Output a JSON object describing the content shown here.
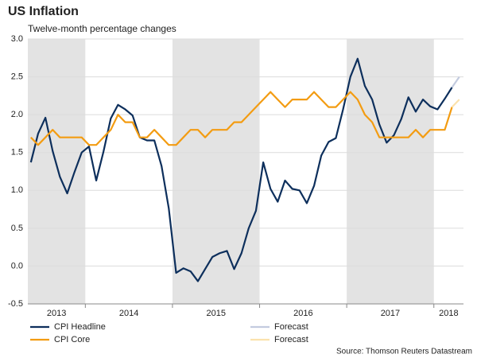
{
  "chart_data": {
    "type": "line",
    "title": "US Inflation",
    "subtitle": "Twelve-month percentage changes",
    "source": "Source: Thomson Reuters Datastream",
    "x": [
      2013.375,
      2013.458,
      2013.542,
      2013.625,
      2013.708,
      2013.792,
      2013.875,
      2013.958,
      2014.042,
      2014.125,
      2014.208,
      2014.292,
      2014.375,
      2014.458,
      2014.542,
      2014.625,
      2014.708,
      2014.792,
      2014.875,
      2014.958,
      2015.042,
      2015.125,
      2015.208,
      2015.292,
      2015.375,
      2015.458,
      2015.542,
      2015.625,
      2015.708,
      2015.792,
      2015.875,
      2015.958,
      2016.042,
      2016.125,
      2016.208,
      2016.292,
      2016.375,
      2016.458,
      2016.542,
      2016.625,
      2016.708,
      2016.792,
      2016.875,
      2016.958,
      2017.042,
      2017.125,
      2017.208,
      2017.292,
      2017.375,
      2017.458,
      2017.542,
      2017.625,
      2017.708,
      2017.792,
      2017.875,
      2017.958,
      2018.042,
      2018.125,
      2018.208,
      2018.292
    ],
    "series": [
      {
        "name": "CPI Headline",
        "color": "#0d2f5c",
        "values": [
          1.37,
          1.75,
          1.96,
          1.52,
          1.18,
          0.96,
          1.24,
          1.5,
          1.58,
          1.13,
          1.51,
          1.95,
          2.13,
          2.07,
          1.99,
          1.7,
          1.66,
          1.66,
          1.32,
          0.76,
          -0.09,
          -0.03,
          -0.07,
          -0.2,
          -0.04,
          0.12,
          0.17,
          0.2,
          -0.04,
          0.17,
          0.5,
          0.73,
          1.37,
          1.02,
          0.85,
          1.13,
          1.02,
          1.0,
          0.83,
          1.06,
          1.46,
          1.64,
          1.69,
          2.07,
          2.5,
          2.74,
          2.38,
          2.2,
          1.87,
          1.63,
          1.73,
          1.94,
          2.23,
          2.04,
          2.2,
          2.11,
          2.07,
          2.21,
          2.36,
          null
        ]
      },
      {
        "name": "CPI Core",
        "color": "#f39c12",
        "values": [
          1.7,
          1.6,
          1.7,
          1.8,
          1.7,
          1.7,
          1.7,
          1.7,
          1.6,
          1.6,
          1.7,
          1.8,
          2.0,
          1.9,
          1.9,
          1.7,
          1.7,
          1.8,
          1.7,
          1.6,
          1.6,
          1.7,
          1.8,
          1.8,
          1.7,
          1.8,
          1.8,
          1.8,
          1.9,
          1.9,
          2.0,
          2.1,
          2.2,
          2.3,
          2.2,
          2.1,
          2.2,
          2.2,
          2.2,
          2.3,
          2.2,
          2.1,
          2.1,
          2.2,
          2.3,
          2.2,
          2.0,
          1.9,
          1.7,
          1.7,
          1.7,
          1.7,
          1.7,
          1.8,
          1.7,
          1.8,
          1.8,
          1.8,
          2.1,
          null
        ]
      },
      {
        "name": "Forecast",
        "color": "#c3cbdf",
        "values": [
          null,
          null,
          null,
          null,
          null,
          null,
          null,
          null,
          null,
          null,
          null,
          null,
          null,
          null,
          null,
          null,
          null,
          null,
          null,
          null,
          null,
          null,
          null,
          null,
          null,
          null,
          null,
          null,
          null,
          null,
          null,
          null,
          null,
          null,
          null,
          null,
          null,
          null,
          null,
          null,
          null,
          null,
          null,
          null,
          null,
          null,
          null,
          null,
          null,
          null,
          null,
          null,
          null,
          null,
          null,
          null,
          null,
          null,
          2.36,
          2.5
        ]
      },
      {
        "name": "Forecast",
        "color": "#fbe2ad",
        "values": [
          null,
          null,
          null,
          null,
          null,
          null,
          null,
          null,
          null,
          null,
          null,
          null,
          null,
          null,
          null,
          null,
          null,
          null,
          null,
          null,
          null,
          null,
          null,
          null,
          null,
          null,
          null,
          null,
          null,
          null,
          null,
          null,
          null,
          null,
          null,
          null,
          null,
          null,
          null,
          null,
          null,
          null,
          null,
          null,
          null,
          null,
          null,
          null,
          null,
          null,
          null,
          null,
          null,
          null,
          null,
          null,
          null,
          null,
          2.1,
          2.2
        ]
      }
    ],
    "xlim": [
      2013.34,
      2018.34
    ],
    "xticks": [
      2013,
      2014,
      2015,
      2016,
      2017,
      2018
    ],
    "shaded_years": [
      2013,
      2015,
      2017
    ],
    "ylim": [
      -0.5,
      3.0
    ],
    "yticks": [
      -0.5,
      {
        "value": 0,
        "label": "0.0"
      },
      0.5,
      {
        "value": 1,
        "label": "1.0"
      },
      1.5,
      {
        "value": 2,
        "label": "2.0"
      },
      2.5,
      {
        "value": 3,
        "label": "3.0"
      }
    ],
    "grid": true,
    "legend": "bottom"
  }
}
